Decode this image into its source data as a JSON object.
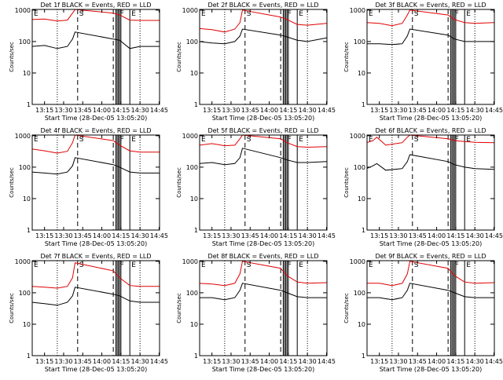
{
  "colors": {
    "events": "#000000",
    "lld": "#e00000",
    "axis": "#000000"
  },
  "common": {
    "ylabel": "Counts/sec",
    "xlabel": "Start Time (28-Dec-05 13:05:20)",
    "x_tick_labels": [
      "13:15",
      "13:30",
      "13:45",
      "14:00",
      "14:15",
      "14:30",
      "14:45"
    ],
    "y_tick_labels": [
      "1",
      "10",
      "100",
      "1000"
    ],
    "markers": [
      "E",
      "S",
      "F",
      "E"
    ]
  },
  "chart_data": [
    {
      "type": "line",
      "title": "Det 1f BLACK = Events, RED = LLD",
      "xlabel": "Start Time (28-Dec-05 13:05:20)",
      "ylabel": "Counts/sec",
      "yscale": "log",
      "ylim": [
        1,
        1000
      ],
      "xlim": [
        "13:05:20",
        "14:45:20"
      ],
      "series": [
        {
          "name": "Events",
          "color": "#000000",
          "x": [
            "13:05",
            "13:15",
            "13:25",
            "13:33",
            "13:37",
            "13:39",
            "14:09",
            "14:14",
            "14:22",
            "14:30",
            "14:45"
          ],
          "y": [
            70,
            75,
            60,
            70,
            120,
            200,
            120,
            110,
            60,
            70,
            70
          ]
        },
        {
          "name": "LLD",
          "color": "#e00000",
          "x": [
            "13:05",
            "13:15",
            "13:25",
            "13:33",
            "13:37",
            "13:39",
            "14:09",
            "14:14",
            "14:22",
            "14:30",
            "14:45"
          ],
          "y": [
            500,
            520,
            450,
            480,
            800,
            1100,
            800,
            700,
            480,
            470,
            470
          ]
        }
      ],
      "vlines": {
        "dotted": [
          "13:25",
          "14:30"
        ],
        "dashed": [
          "13:41",
          "14:09"
        ],
        "solid": [
          "14:11",
          "14:12",
          "14:13",
          "14:14",
          "14:15",
          "14:22"
        ]
      }
    },
    {
      "type": "line",
      "title": "Det 2f BLACK = Events, RED = LLD",
      "xlabel": "Start Time (28-Dec-05 13:05:20)",
      "ylabel": "Counts/sec",
      "yscale": "log",
      "ylim": [
        1,
        1000
      ],
      "xlim": [
        "13:05:20",
        "14:45:20"
      ],
      "series": [
        {
          "name": "Events",
          "color": "#000000",
          "x": [
            "13:05",
            "13:15",
            "13:25",
            "13:33",
            "13:37",
            "13:39",
            "14:09",
            "14:14",
            "14:22",
            "14:30",
            "14:45"
          ],
          "y": [
            100,
            90,
            85,
            100,
            150,
            250,
            160,
            140,
            110,
            100,
            130
          ]
        },
        {
          "name": "LLD",
          "color": "#e00000",
          "x": [
            "13:05",
            "13:15",
            "13:25",
            "13:33",
            "13:37",
            "13:39",
            "14:09",
            "14:14",
            "14:22",
            "14:30",
            "14:45"
          ],
          "y": [
            260,
            240,
            200,
            250,
            400,
            1000,
            600,
            500,
            350,
            330,
            380
          ]
        }
      ],
      "vlines": {
        "dotted": [
          "13:25",
          "14:30"
        ],
        "dashed": [
          "13:41",
          "14:09"
        ],
        "solid": [
          "14:11",
          "14:12",
          "14:13",
          "14:14",
          "14:15",
          "14:22"
        ]
      }
    },
    {
      "type": "line",
      "title": "Det 3f BLACK = Events, RED = LLD",
      "xlabel": "Start Time (28-Dec-05 13:05:20)",
      "ylabel": "Counts/sec",
      "yscale": "log",
      "ylim": [
        1,
        1000
      ],
      "xlim": [
        "13:05:20",
        "14:45:20"
      ],
      "series": [
        {
          "name": "Events",
          "color": "#000000",
          "x": [
            "13:05",
            "13:15",
            "13:25",
            "13:33",
            "13:37",
            "13:39",
            "14:09",
            "14:14",
            "14:22",
            "14:30",
            "14:45"
          ],
          "y": [
            85,
            85,
            80,
            85,
            150,
            250,
            160,
            120,
            100,
            100,
            100
          ]
        },
        {
          "name": "LLD",
          "color": "#e00000",
          "x": [
            "13:05",
            "13:15",
            "13:25",
            "13:33",
            "13:37",
            "13:39",
            "14:09",
            "14:14",
            "14:22",
            "14:30",
            "14:45"
          ],
          "y": [
            400,
            380,
            320,
            380,
            700,
            1000,
            700,
            500,
            400,
            380,
            400
          ]
        }
      ],
      "vlines": {
        "dotted": [
          "13:25",
          "14:30"
        ],
        "dashed": [
          "13:41",
          "14:09"
        ],
        "solid": [
          "14:11",
          "14:12",
          "14:13",
          "14:14",
          "14:15",
          "14:22"
        ]
      }
    },
    {
      "type": "line",
      "title": "Det 4f BLACK = Events, RED = LLD",
      "xlabel": "Start Time (28-Dec-05 13:05:20)",
      "ylabel": "Counts/sec",
      "yscale": "log",
      "ylim": [
        1,
        1000
      ],
      "xlim": [
        "13:05:20",
        "14:45:20"
      ],
      "series": [
        {
          "name": "Events",
          "color": "#000000",
          "x": [
            "13:05",
            "13:15",
            "13:25",
            "13:33",
            "13:37",
            "13:39",
            "14:09",
            "14:14",
            "14:22",
            "14:30",
            "14:45"
          ],
          "y": [
            70,
            65,
            60,
            70,
            110,
            200,
            120,
            100,
            70,
            65,
            65
          ]
        },
        {
          "name": "LLD",
          "color": "#e00000",
          "x": [
            "13:05",
            "13:15",
            "13:25",
            "13:33",
            "13:37",
            "13:39",
            "14:09",
            "14:14",
            "14:22",
            "14:30",
            "14:45"
          ],
          "y": [
            380,
            330,
            280,
            320,
            600,
            1100,
            700,
            500,
            330,
            300,
            300
          ]
        }
      ],
      "vlines": {
        "dotted": [
          "13:25",
          "14:30"
        ],
        "dashed": [
          "13:41",
          "14:09"
        ],
        "solid": [
          "14:11",
          "14:12",
          "14:13",
          "14:14",
          "14:15",
          "14:22"
        ]
      }
    },
    {
      "type": "line",
      "title": "Det 5f BLACK = Events, RED = LLD",
      "xlabel": "Start Time (28-Dec-05 13:05:20)",
      "ylabel": "Counts/sec",
      "yscale": "log",
      "ylim": [
        1,
        1000
      ],
      "xlim": [
        "13:05:20",
        "14:45:20"
      ],
      "series": [
        {
          "name": "Events",
          "color": "#000000",
          "x": [
            "13:05",
            "13:15",
            "13:25",
            "13:33",
            "13:37",
            "13:39",
            "14:09",
            "14:14",
            "14:22",
            "14:30",
            "14:45"
          ],
          "y": [
            130,
            140,
            120,
            130,
            200,
            400,
            200,
            170,
            140,
            140,
            150
          ]
        },
        {
          "name": "LLD",
          "color": "#e00000",
          "x": [
            "13:05",
            "13:15",
            "13:25",
            "13:33",
            "13:37",
            "13:39",
            "14:09",
            "14:14",
            "14:22",
            "14:30",
            "14:45"
          ],
          "y": [
            500,
            560,
            480,
            500,
            800,
            1200,
            800,
            600,
            450,
            430,
            450
          ]
        }
      ],
      "vlines": {
        "dotted": [
          "13:25",
          "14:30"
        ],
        "dashed": [
          "13:41",
          "14:09"
        ],
        "solid": [
          "14:11",
          "14:12",
          "14:13",
          "14:14",
          "14:15",
          "14:22"
        ]
      }
    },
    {
      "type": "line",
      "title": "Det 6f BLACK = Events, RED = LLD",
      "xlabel": "Start Time (28-Dec-05 13:05:20)",
      "ylabel": "Counts/sec",
      "yscale": "log",
      "ylim": [
        1,
        1000
      ],
      "xlim": [
        "13:05:20",
        "14:45:20"
      ],
      "series": [
        {
          "name": "Events",
          "color": "#000000",
          "x": [
            "13:05",
            "13:10",
            "13:13",
            "13:20",
            "13:33",
            "13:37",
            "13:39",
            "14:09",
            "14:14",
            "14:22",
            "14:30",
            "14:45"
          ],
          "y": [
            90,
            110,
            130,
            80,
            90,
            150,
            250,
            150,
            120,
            100,
            90,
            85
          ]
        },
        {
          "name": "LLD",
          "color": "#e00000",
          "x": [
            "13:05",
            "13:10",
            "13:13",
            "13:20",
            "13:33",
            "13:37",
            "13:39",
            "14:09",
            "14:14",
            "14:22",
            "14:30",
            "14:45"
          ],
          "y": [
            600,
            700,
            900,
            500,
            600,
            900,
            1200,
            800,
            700,
            650,
            620,
            600
          ]
        }
      ],
      "vlines": {
        "dotted": [
          "13:25",
          "14:30"
        ],
        "dashed": [
          "13:41",
          "14:09"
        ],
        "solid": [
          "14:11",
          "14:12",
          "14:13",
          "14:14",
          "14:15",
          "14:22"
        ]
      }
    },
    {
      "type": "line",
      "title": "Det 7f BLACK = Events, RED = LLD",
      "xlabel": "Start Time (28-Dec-05 13:05:20)",
      "ylabel": "Counts/sec",
      "yscale": "log",
      "ylim": [
        1,
        1000
      ],
      "xlim": [
        "13:05:20",
        "14:45:20"
      ],
      "series": [
        {
          "name": "Events",
          "color": "#000000",
          "x": [
            "13:05",
            "13:15",
            "13:25",
            "13:33",
            "13:37",
            "13:39",
            "14:09",
            "14:14",
            "14:22",
            "14:30",
            "14:45"
          ],
          "y": [
            50,
            45,
            40,
            50,
            80,
            150,
            90,
            80,
            55,
            50,
            50
          ]
        },
        {
          "name": "LLD",
          "color": "#e00000",
          "x": [
            "13:05",
            "13:15",
            "13:25",
            "13:33",
            "13:37",
            "13:39",
            "14:09",
            "14:14",
            "14:22",
            "14:30",
            "14:45"
          ],
          "y": [
            160,
            150,
            140,
            160,
            300,
            900,
            500,
            300,
            170,
            160,
            160
          ]
        }
      ],
      "vlines": {
        "dotted": [
          "13:25",
          "14:30"
        ],
        "dashed": [
          "13:41",
          "14:09"
        ],
        "solid": [
          "14:11",
          "14:12",
          "14:13",
          "14:14",
          "14:15",
          "14:22"
        ]
      }
    },
    {
      "type": "line",
      "title": "Det 8f BLACK = Events, RED = LLD",
      "xlabel": "Start Time (28-Dec-05 13:05:20)",
      "ylabel": "Counts/sec",
      "yscale": "log",
      "ylim": [
        1,
        1000
      ],
      "xlim": [
        "13:05:20",
        "14:45:20"
      ],
      "series": [
        {
          "name": "Events",
          "color": "#000000",
          "x": [
            "13:05",
            "13:15",
            "13:25",
            "13:33",
            "13:37",
            "13:39",
            "14:09",
            "14:14",
            "14:22",
            "14:30",
            "14:45"
          ],
          "y": [
            70,
            70,
            60,
            70,
            120,
            200,
            120,
            100,
            75,
            70,
            70
          ]
        },
        {
          "name": "LLD",
          "color": "#e00000",
          "x": [
            "13:05",
            "13:15",
            "13:25",
            "13:33",
            "13:37",
            "13:39",
            "14:09",
            "14:14",
            "14:22",
            "14:30",
            "14:45"
          ],
          "y": [
            200,
            190,
            170,
            200,
            400,
            1000,
            600,
            350,
            220,
            200,
            210
          ]
        }
      ],
      "vlines": {
        "dotted": [
          "13:25",
          "14:30"
        ],
        "dashed": [
          "13:41",
          "14:09"
        ],
        "solid": [
          "14:11",
          "14:12",
          "14:13",
          "14:14",
          "14:15",
          "14:22"
        ]
      }
    },
    {
      "type": "line",
      "title": "Det 9f BLACK = Events, RED = LLD",
      "xlabel": "Start Time (28-Dec-05 13:05:20)",
      "ylabel": "Counts/sec",
      "yscale": "log",
      "ylim": [
        1,
        1000
      ],
      "xlim": [
        "13:05:20",
        "14:45:20"
      ],
      "series": [
        {
          "name": "Events",
          "color": "#000000",
          "x": [
            "13:05",
            "13:15",
            "13:25",
            "13:33",
            "13:37",
            "13:39",
            "14:09",
            "14:14",
            "14:22",
            "14:30",
            "14:45"
          ],
          "y": [
            70,
            70,
            60,
            70,
            120,
            200,
            120,
            100,
            75,
            70,
            70
          ]
        },
        {
          "name": "LLD",
          "color": "#e00000",
          "x": [
            "13:05",
            "13:15",
            "13:25",
            "13:33",
            "13:37",
            "13:39",
            "14:09",
            "14:14",
            "14:22",
            "14:30",
            "14:45"
          ],
          "y": [
            200,
            200,
            170,
            200,
            400,
            1000,
            600,
            350,
            220,
            200,
            210
          ]
        }
      ],
      "vlines": {
        "dotted": [
          "13:25",
          "14:30"
        ],
        "dashed": [
          "13:41",
          "14:09"
        ],
        "solid": [
          "14:11",
          "14:12",
          "14:13",
          "14:14",
          "14:15",
          "14:22"
        ]
      }
    }
  ]
}
